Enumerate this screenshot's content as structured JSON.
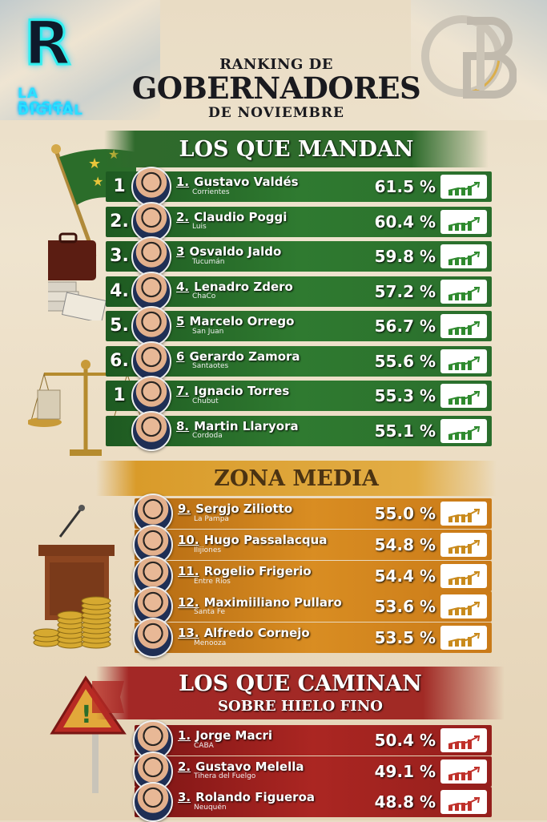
{
  "brand": {
    "logo_left_line1": "LA ROSCA",
    "logo_left_line2": "DIGITAL",
    "logo_left_letter": "R",
    "logo_right_letters": "CB"
  },
  "header": {
    "line1": "RANKING DE",
    "line2": "GOBERNADORES",
    "line3": "DE NOVIEMBRE"
  },
  "sections": {
    "mandan": "LOS QUE MANDAN",
    "media": "ZONA MEDIA",
    "caminan_line1": "LOS QUE CAMINAN",
    "caminan_line2": "SOBRE HIELO FINO"
  },
  "colors": {
    "green": "#2f7a30",
    "gold": "#d98d22",
    "red": "#ab2622"
  },
  "mandan_rows": [
    {
      "side": "1",
      "rank": "1.",
      "name": "Gustavo Valdés",
      "prov": "Corrientes",
      "pct": "61.5 %"
    },
    {
      "side": "2.",
      "rank": "2.",
      "name": "Claudio Poggi",
      "prov": "Luis",
      "pct": "60.4 %"
    },
    {
      "side": "3.",
      "rank": "3",
      "name": "Osvaldo Jaldo",
      "prov": "Tucumán",
      "pct": "59.8 %"
    },
    {
      "side": "4.",
      "rank": "4.",
      "name": "Lenadro Zdero",
      "prov": "ChaCo",
      "pct": "57.2 %"
    },
    {
      "side": "5.",
      "rank": "5",
      "name": "Marcelo Orrego",
      "prov": "San Juan",
      "pct": "56.7 %"
    },
    {
      "side": "6.",
      "rank": "6",
      "name": "Gerardo Zamora",
      "prov": "Santaotes",
      "pct": "55.6 %"
    },
    {
      "side": "1",
      "rank": "7.",
      "name": "Ignacio Torres",
      "prov": "Chubut",
      "pct": "55.3 %"
    },
    {
      "side": "",
      "rank": "8.",
      "name": "Martin Llaryora",
      "prov": "Cordoda",
      "pct": "55.1 %"
    }
  ],
  "media_rows": [
    {
      "rank": "9.",
      "name": "Sergjo Ziliotto",
      "prov": "La Pampa",
      "pct": "55.0 %"
    },
    {
      "rank": "10.",
      "name": "Hugo Passalacqua",
      "prov": "Ilijiones",
      "pct": "54.8 %"
    },
    {
      "rank": "11.",
      "name": "Rogelio Frigerio",
      "prov": "Entre Rios",
      "pct": "54.4 %"
    },
    {
      "rank": "12.",
      "name": "Maximiiliano Pullaro",
      "prov": "Santa Fe",
      "pct": "53.6 %"
    },
    {
      "rank": "13.",
      "name": "Alfredo Cornejo",
      "prov": "Menooza",
      "pct": "53.5 %"
    }
  ],
  "caminan_rows": [
    {
      "rank": "1.",
      "name": "Jorge Macri",
      "prov": "CABA",
      "pct": "50.4 %"
    },
    {
      "rank": "2.",
      "name": "Gustavo Melella",
      "prov": "Tihera del Fuelgo",
      "pct": "49.1 %"
    },
    {
      "rank": "3.",
      "name": "Rolando Figueroa",
      "prov": "Neuquén",
      "pct": "48.8 %"
    }
  ]
}
